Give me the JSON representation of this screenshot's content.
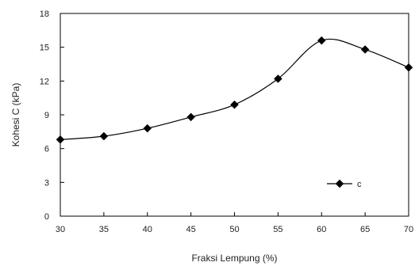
{
  "chart_data": {
    "type": "line",
    "x": [
      30,
      35,
      40,
      45,
      50,
      55,
      60,
      65,
      70
    ],
    "series": [
      {
        "name": "c",
        "values": [
          6.8,
          7.1,
          7.8,
          8.8,
          9.9,
          12.2,
          15.6,
          14.8,
          13.2
        ]
      }
    ],
    "xlabel": "Fraksi Lempung (%)",
    "ylabel": "Kohesi C (kPa)",
    "xlim": [
      30,
      70
    ],
    "ylim": [
      0,
      18
    ],
    "xticks": [
      30,
      35,
      40,
      45,
      50,
      55,
      60,
      65,
      70
    ],
    "yticks": [
      0,
      3,
      6,
      9,
      12,
      15,
      18
    ],
    "grid": false,
    "legend_position": "lower-right",
    "line_color": "#000000",
    "marker": "diamond"
  }
}
